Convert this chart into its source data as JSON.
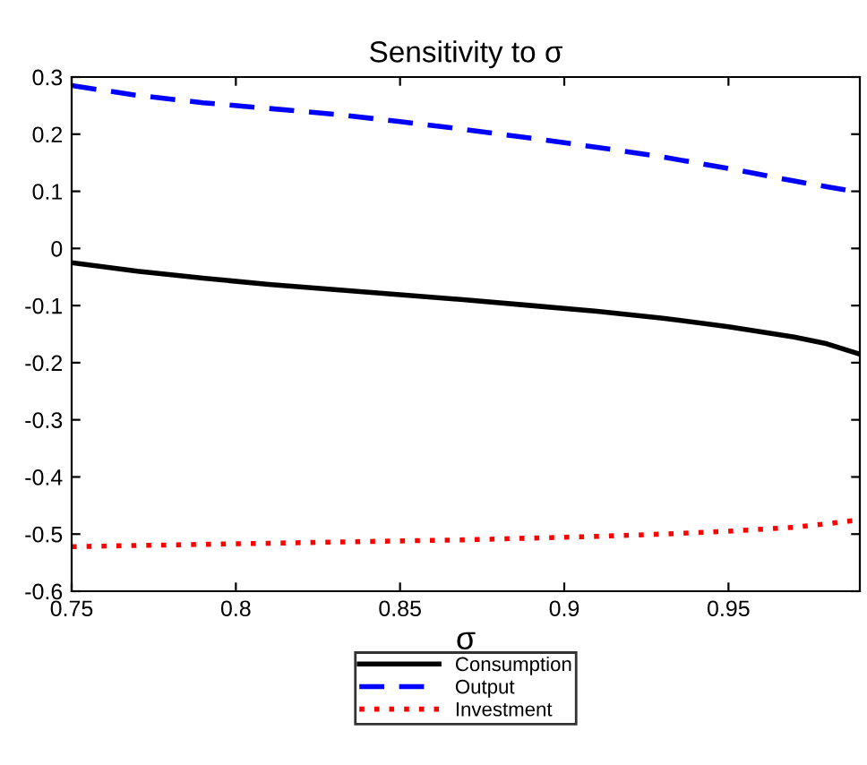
{
  "chart_data": {
    "type": "line",
    "title": "Sensitivity to σ",
    "xlabel": "σ",
    "x": [
      0.75,
      0.77,
      0.79,
      0.81,
      0.83,
      0.85,
      0.87,
      0.89,
      0.91,
      0.93,
      0.95,
      0.97,
      0.98,
      0.99
    ],
    "series": [
      {
        "name": "Consumption",
        "color": "#000000",
        "line_style": "solid",
        "values": [
          -0.025,
          -0.04,
          -0.052,
          -0.063,
          -0.072,
          -0.081,
          -0.09,
          -0.1,
          -0.11,
          -0.122,
          -0.137,
          -0.155,
          -0.167,
          -0.185
        ]
      },
      {
        "name": "Output",
        "color": "#0000ff",
        "line_style": "dashed",
        "values": [
          0.285,
          0.268,
          0.255,
          0.245,
          0.235,
          0.222,
          0.208,
          0.193,
          0.177,
          0.16,
          0.14,
          0.118,
          0.108,
          0.098
        ]
      },
      {
        "name": "Investment",
        "color": "#ff0000",
        "line_style": "dotted",
        "values": [
          -0.522,
          -0.52,
          -0.518,
          -0.516,
          -0.514,
          -0.512,
          -0.51,
          -0.507,
          -0.504,
          -0.5,
          -0.495,
          -0.488,
          -0.482,
          -0.475
        ]
      }
    ],
    "xlim": [
      0.75,
      0.99
    ],
    "ylim": [
      -0.6,
      0.3
    ],
    "xticks": [
      0.75,
      0.8,
      0.85,
      0.9,
      0.95
    ],
    "yticks": [
      -0.6,
      -0.5,
      -0.4,
      -0.3,
      -0.2,
      -0.1,
      0,
      0.1,
      0.2,
      0.3
    ],
    "grid": false,
    "legend": "bottom",
    "marker": "none"
  }
}
